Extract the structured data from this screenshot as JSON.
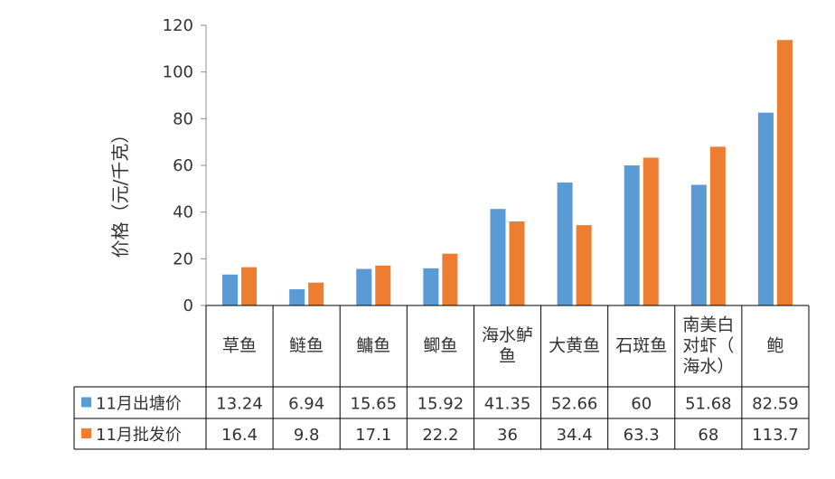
{
  "chart_data": {
    "type": "bar",
    "title": "",
    "xlabel": "",
    "ylabel": "价格（元/千克）",
    "ylim": [
      0,
      120
    ],
    "yticks": [
      0,
      20,
      40,
      60,
      80,
      100,
      120
    ],
    "grid": false,
    "legend": "data-table-left",
    "categories": [
      "草鱼",
      "鲢鱼",
      "鳙鱼",
      "鲫鱼",
      "海水鲈鱼",
      "大黄鱼",
      "石斑鱼",
      "南美白对虾（海水）",
      "鲍"
    ],
    "category_lines": [
      [
        "草鱼"
      ],
      [
        "鲢鱼"
      ],
      [
        "鳙鱼"
      ],
      [
        "鲫鱼"
      ],
      [
        "海水鲈",
        "鱼"
      ],
      [
        "大黄鱼"
      ],
      [
        "石斑鱼"
      ],
      [
        "南美白",
        "对虾（",
        "海水）"
      ],
      [
        "鲍"
      ]
    ],
    "series": [
      {
        "name": "11月出塘价",
        "color": "#5B9BD5",
        "values": [
          13.24,
          6.94,
          15.65,
          15.92,
          41.35,
          52.66,
          60,
          51.68,
          82.59
        ],
        "labels": [
          "13.24",
          "6.94",
          "15.65",
          "15.92",
          "41.35",
          "52.66",
          "60",
          "51.68",
          "82.59"
        ]
      },
      {
        "name": "11月批发价",
        "color": "#ED7D31",
        "values": [
          16.4,
          9.8,
          17.1,
          22.2,
          36,
          34.4,
          63.3,
          68,
          113.7
        ],
        "labels": [
          "16.4",
          "9.8",
          "17.1",
          "22.2",
          "36",
          "34.4",
          "63.3",
          "68",
          "113.7"
        ]
      }
    ]
  }
}
